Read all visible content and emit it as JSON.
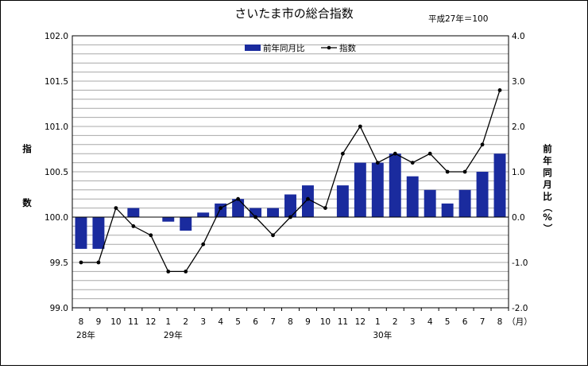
{
  "chart_data": {
    "type": "bar+line",
    "title": "さいたま市の総合指数",
    "note": "平成27年＝100",
    "categories": [
      "8",
      "9",
      "10",
      "11",
      "12",
      "1",
      "2",
      "3",
      "4",
      "5",
      "6",
      "7",
      "8",
      "9",
      "10",
      "11",
      "12",
      "1",
      "2",
      "3",
      "4",
      "5",
      "6",
      "7",
      "8"
    ],
    "month_unit": "（月）",
    "year_labels": [
      {
        "label": "28年",
        "index": 0
      },
      {
        "label": "29年",
        "index": 5
      },
      {
        "label": "30年",
        "index": 17
      }
    ],
    "left_axis": {
      "label_chars": [
        "指",
        "数"
      ],
      "ylim": [
        99.0,
        102.0
      ],
      "ticks": [
        "99.0",
        "99.5",
        "100.0",
        "100.5",
        "101.0",
        "101.5",
        "102.0"
      ]
    },
    "right_axis": {
      "label_chars": [
        "前",
        "年",
        "同",
        "月",
        "比",
        "（",
        "%",
        "）"
      ],
      "ylim": [
        -2.0,
        4.0
      ],
      "ticks": [
        "-2.0",
        "-1.0",
        "0.0",
        "1.0",
        "2.0",
        "3.0",
        "4.0"
      ]
    },
    "series": [
      {
        "name": "前年同月比",
        "type": "bar",
        "axis": "right",
        "color": "#1a2b9e",
        "values": [
          -0.7,
          -0.7,
          null,
          0.2,
          null,
          -0.1,
          -0.3,
          0.1,
          0.3,
          0.4,
          0.2,
          0.2,
          0.5,
          0.7,
          null,
          0.7,
          1.2,
          1.2,
          1.4,
          0.9,
          0.6,
          0.3,
          0.6,
          1.0,
          1.4
        ]
      },
      {
        "name": "指数",
        "type": "line",
        "axis": "left",
        "color": "#000000",
        "values": [
          99.5,
          99.5,
          100.1,
          99.9,
          99.8,
          99.4,
          99.4,
          99.7,
          100.1,
          100.2,
          100.0,
          99.8,
          100.0,
          100.2,
          100.1,
          100.7,
          101.0,
          100.6,
          100.7,
          100.6,
          100.7,
          100.5,
          100.5,
          100.8,
          101.4
        ]
      }
    ],
    "grid": true,
    "legend_position": "top-center"
  }
}
